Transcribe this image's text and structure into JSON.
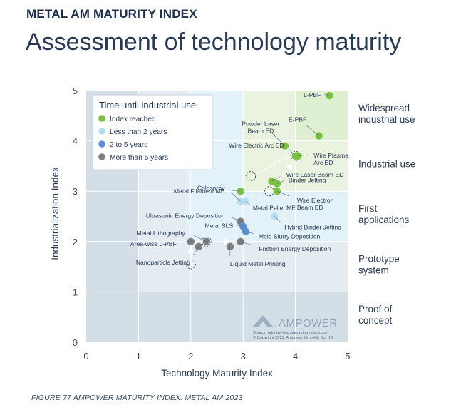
{
  "header": {
    "kicker": "METAL AM MATURITY INDEX",
    "title": "Assessment of technology maturity"
  },
  "caption": "FIGURE 77 AMPOWER MATURITY INDEX: METAL AM 2023",
  "colors": {
    "index_reached": "#7cc142",
    "less_than_2": "#b7def0",
    "two_to_five": "#5b8fcf",
    "more_than_5": "#7e7e7e",
    "band_widespread": "#f0f6ea",
    "band_industrial": "#e9f3df",
    "band_first": "#e7f4fb",
    "band_prototype": "#e8eef3",
    "band_concept": "#d4dfe8"
  },
  "chart_data": {
    "type": "scatter",
    "xlabel": "Technology Maturity Index",
    "ylabel": "Industrialization Index",
    "xlim": [
      0,
      5
    ],
    "ylim": [
      0,
      5
    ],
    "xticks": [
      0,
      1,
      2,
      3,
      4,
      5
    ],
    "yticks": [
      0,
      1,
      2,
      3,
      4,
      5
    ],
    "legend": {
      "title": "Time until industrial use",
      "position": "top-left",
      "entries": [
        {
          "label": "Index reached",
          "color": "#7cc142"
        },
        {
          "label": "Less than 2 years",
          "color": "#b7def0"
        },
        {
          "label": "2 to 5 years",
          "color": "#5b8fcf"
        },
        {
          "label": "More than 5 years",
          "color": "#7e7e7e"
        }
      ]
    },
    "zones": [
      {
        "label": "Widespread\nindustrial use"
      },
      {
        "label": "Industrial use"
      },
      {
        "label": "First\napplications"
      },
      {
        "label": "Prototype\nsystem"
      },
      {
        "label": "Proof of\nconcept"
      }
    ],
    "points": [
      {
        "label": "L-PBF",
        "x": 4.65,
        "y": 4.9,
        "category": "Index reached"
      },
      {
        "label": "E-PBF",
        "x": 4.45,
        "y": 4.1,
        "category": "Index reached"
      },
      {
        "label": "Powder Laser\nBeam ED",
        "x": 3.8,
        "y": 3.9,
        "category": "Index reached"
      },
      {
        "label": "Wire Electric Arc ED",
        "x": 4.0,
        "y": 3.7,
        "category": "Index reached"
      },
      {
        "label": "Wire Plasma\nArc ED",
        "x": 4.05,
        "y": 3.7,
        "category": "Index reached"
      },
      {
        "label": "Wire Laser Beam ED",
        "x": 3.55,
        "y": 3.2,
        "category": "Index reached"
      },
      {
        "label": "Binder Jetting",
        "x": 3.65,
        "y": 3.15,
        "category": "Index reached"
      },
      {
        "label": "Wire Electron\nBeam ED",
        "x": 3.65,
        "y": 3.0,
        "category": "Index reached"
      },
      {
        "label": "Metal Filament ME",
        "x": 2.95,
        "y": 3.0,
        "category": "Index reached"
      },
      {
        "label": "Coldspray",
        "x": 2.95,
        "y": 2.8,
        "category": "Less than 2 years"
      },
      {
        "label": "Metal Pellet ME",
        "x": 3.05,
        "y": 2.8,
        "category": "Less than 2 years"
      },
      {
        "label": "Hybrid Binder Jetting",
        "x": 3.6,
        "y": 2.5,
        "category": "Less than 2 years"
      },
      {
        "label": "Ultrasonic Energy Deposition",
        "x": 2.95,
        "y": 2.4,
        "category": "More than 5 years"
      },
      {
        "label": "Metal SLS",
        "x": 3.0,
        "y": 2.3,
        "category": "2 to 5 years"
      },
      {
        "label": "Mold Slurry Deposition",
        "x": 3.05,
        "y": 2.2,
        "category": "2 to 5 years"
      },
      {
        "label": "Metal Lithography",
        "x": 2.3,
        "y": 2.0,
        "category": "More than 5 years"
      },
      {
        "label": "Area-wise L-PBF",
        "x": 2.0,
        "y": 2.0,
        "category": "More than 5 years"
      },
      {
        "label": "Nanoparticle Jetting",
        "x": 2.15,
        "y": 1.9,
        "category": "More than 5 years"
      },
      {
        "label": "Friction Energy Deposition",
        "x": 2.95,
        "y": 2.0,
        "category": "More than 5 years"
      },
      {
        "label": "Liquid Metal Printing",
        "x": 2.75,
        "y": 1.9,
        "category": "More than 5 years"
      }
    ]
  },
  "watermark": {
    "brand": "AMPOWER",
    "source": "Source: additive-manufacturing-report.com",
    "copyright": "© Copyright 2023, Ampower GmbH & Co. KG"
  }
}
